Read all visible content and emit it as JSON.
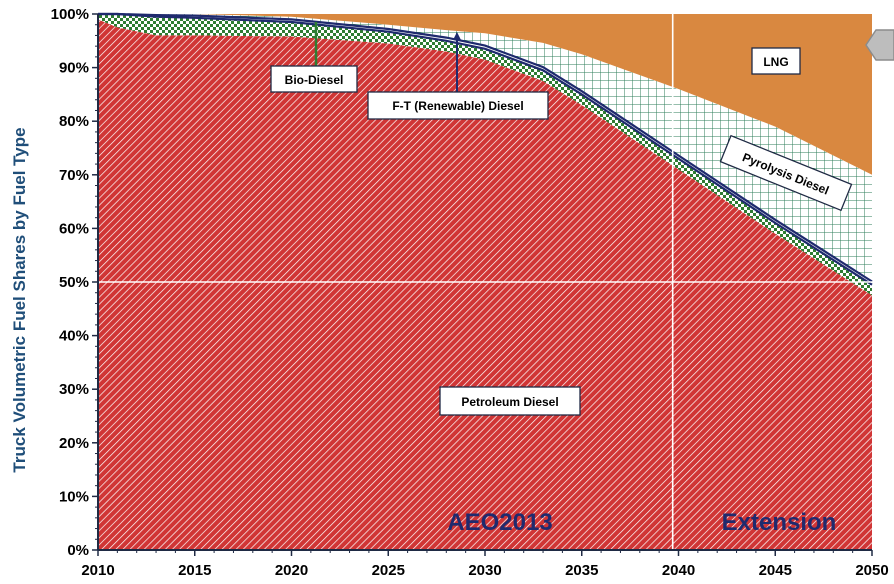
{
  "chart_data": {
    "type": "area",
    "stacked": true,
    "ylabel": "Truck Volumetric Fuel Shares by Fuel Type",
    "xlabel": "",
    "xlim": [
      2010,
      2050
    ],
    "ylim": [
      0,
      100
    ],
    "x_ticks": [
      2010,
      2015,
      2020,
      2025,
      2030,
      2035,
      2040,
      2045,
      2050
    ],
    "y_ticks": [
      "0%",
      "10%",
      "20%",
      "30%",
      "40%",
      "50%",
      "60%",
      "70%",
      "80%",
      "90%",
      "100%"
    ],
    "x": [
      2010,
      2011,
      2013,
      2015,
      2020,
      2025,
      2028,
      2030,
      2033,
      2035,
      2040,
      2045,
      2050
    ],
    "series": [
      {
        "name": "Petroleum Diesel",
        "color": "#d03535",
        "values": [
          99,
          97.5,
          96,
          96,
          95.8,
          94.5,
          93,
          91.5,
          87.5,
          83,
          71,
          59,
          47.5
        ]
      },
      {
        "name": "Bio-Diesel",
        "color": "#2e7d32",
        "values": [
          1,
          2.5,
          3.5,
          3.3,
          2.7,
          2.2,
          2,
          2,
          2,
          2,
          2,
          2,
          2
        ]
      },
      {
        "name": "F-T (Renewable) Diesel",
        "color": "#1f2a6e",
        "values": [
          0,
          0,
          0.3,
          0.4,
          0.5,
          0.5,
          0.6,
          0.6,
          0.6,
          0.6,
          0.6,
          0.6,
          0.6
        ]
      },
      {
        "name": "Pyrolysis Diesel",
        "color": "#2e7d5a",
        "values": [
          0,
          0,
          0.2,
          0.3,
          0.5,
          0.8,
          1.4,
          2.3,
          4.5,
          6.9,
          12.4,
          17.4,
          19.9
        ]
      },
      {
        "name": "LNG",
        "color": "#d98840",
        "values": [
          0,
          0,
          0,
          0,
          0.5,
          2,
          3,
          3.6,
          5.4,
          7.5,
          14,
          21,
          30
        ]
      }
    ],
    "annotations": {
      "bio_diesel": "Bio-Diesel",
      "ft_diesel": "F-T (Renewable) Diesel",
      "pyrolysis": "Pyrolysis Diesel",
      "lng": "LNG",
      "petroleum": "Petroleum Diesel",
      "aeo": "AEO2013",
      "extension": "Extension"
    },
    "divider_year": 2039.7,
    "grid": "horizontal at 50% and vertical at divider",
    "legend": "none"
  }
}
